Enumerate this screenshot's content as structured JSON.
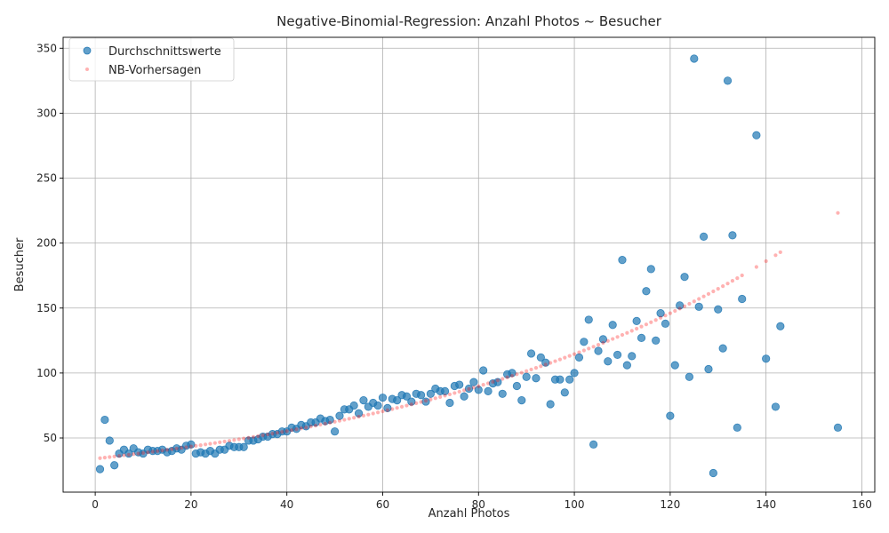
{
  "chart_data": {
    "type": "scatter",
    "title": "Negative-Binomial-Regression: Anzahl Photos ~ Besucher",
    "xlabel": "Anzahl Photos",
    "ylabel": "Besucher",
    "xlim": [
      -6.7,
      162.7
    ],
    "ylim": [
      8.3,
      358.4
    ],
    "xticks": [
      0,
      20,
      40,
      60,
      80,
      100,
      120,
      140,
      160
    ],
    "yticks": [
      50,
      100,
      150,
      200,
      250,
      300,
      350
    ],
    "grid": true,
    "legend_position": "upper left",
    "series": [
      {
        "name": "Durchschnittswerte",
        "color": "#1f77b4",
        "marker": "circle",
        "points": [
          [
            1,
            26
          ],
          [
            2,
            64
          ],
          [
            3,
            48
          ],
          [
            4,
            29
          ],
          [
            5,
            38
          ],
          [
            6,
            41
          ],
          [
            7,
            38
          ],
          [
            8,
            42
          ],
          [
            9,
            39
          ],
          [
            10,
            38
          ],
          [
            11,
            41
          ],
          [
            12,
            40
          ],
          [
            13,
            40
          ],
          [
            14,
            41
          ],
          [
            15,
            39
          ],
          [
            16,
            40
          ],
          [
            17,
            42
          ],
          [
            18,
            41
          ],
          [
            19,
            44
          ],
          [
            20,
            45
          ],
          [
            21,
            38
          ],
          [
            22,
            39
          ],
          [
            23,
            38
          ],
          [
            24,
            40
          ],
          [
            25,
            38
          ],
          [
            26,
            41
          ],
          [
            27,
            41
          ],
          [
            28,
            44
          ],
          [
            29,
            43
          ],
          [
            30,
            43
          ],
          [
            31,
            43
          ],
          [
            32,
            48
          ],
          [
            33,
            48
          ],
          [
            34,
            49
          ],
          [
            35,
            51
          ],
          [
            36,
            51
          ],
          [
            37,
            53
          ],
          [
            38,
            53
          ],
          [
            39,
            55
          ],
          [
            40,
            55
          ],
          [
            41,
            58
          ],
          [
            42,
            57
          ],
          [
            43,
            60
          ],
          [
            44,
            59
          ],
          [
            45,
            62
          ],
          [
            46,
            62
          ],
          [
            47,
            65
          ],
          [
            48,
            63
          ],
          [
            49,
            64
          ],
          [
            50,
            55
          ],
          [
            51,
            67
          ],
          [
            52,
            72
          ],
          [
            53,
            72
          ],
          [
            54,
            75
          ],
          [
            55,
            69
          ],
          [
            56,
            79
          ],
          [
            57,
            74
          ],
          [
            58,
            77
          ],
          [
            59,
            75
          ],
          [
            60,
            81
          ],
          [
            61,
            73
          ],
          [
            62,
            80
          ],
          [
            63,
            79
          ],
          [
            64,
            83
          ],
          [
            65,
            82
          ],
          [
            66,
            78
          ],
          [
            67,
            84
          ],
          [
            68,
            83
          ],
          [
            69,
            78
          ],
          [
            70,
            84
          ],
          [
            71,
            88
          ],
          [
            72,
            86
          ],
          [
            73,
            86
          ],
          [
            74,
            77
          ],
          [
            75,
            90
          ],
          [
            76,
            91
          ],
          [
            77,
            82
          ],
          [
            78,
            88
          ],
          [
            79,
            93
          ],
          [
            80,
            87
          ],
          [
            81,
            102
          ],
          [
            82,
            86
          ],
          [
            83,
            92
          ],
          [
            84,
            93
          ],
          [
            85,
            84
          ],
          [
            86,
            99
          ],
          [
            87,
            100
          ],
          [
            88,
            90
          ],
          [
            89,
            79
          ],
          [
            90,
            97
          ],
          [
            91,
            115
          ],
          [
            92,
            96
          ],
          [
            93,
            112
          ],
          [
            94,
            108
          ],
          [
            95,
            76
          ],
          [
            96,
            95
          ],
          [
            97,
            95
          ],
          [
            98,
            85
          ],
          [
            99,
            95
          ],
          [
            100,
            100
          ],
          [
            101,
            112
          ],
          [
            102,
            124
          ],
          [
            103,
            141
          ],
          [
            104,
            45
          ],
          [
            105,
            117
          ],
          [
            106,
            126
          ],
          [
            107,
            109
          ],
          [
            108,
            137
          ],
          [
            109,
            114
          ],
          [
            110,
            187
          ],
          [
            111,
            106
          ],
          [
            112,
            113
          ],
          [
            113,
            140
          ],
          [
            114,
            127
          ],
          [
            115,
            163
          ],
          [
            116,
            180
          ],
          [
            117,
            125
          ],
          [
            118,
            146
          ],
          [
            119,
            138
          ],
          [
            120,
            67
          ],
          [
            121,
            106
          ],
          [
            122,
            152
          ],
          [
            123,
            174
          ],
          [
            124,
            97
          ],
          [
            125,
            342
          ],
          [
            126,
            151
          ],
          [
            127,
            205
          ],
          [
            128,
            103
          ],
          [
            129,
            23
          ],
          [
            130,
            149
          ],
          [
            131,
            119
          ],
          [
            132,
            325
          ],
          [
            133,
            206
          ],
          [
            134,
            58
          ],
          [
            135,
            157
          ],
          [
            138,
            283
          ],
          [
            140,
            111
          ],
          [
            142,
            74
          ],
          [
            143,
            136
          ],
          [
            155,
            58
          ]
        ]
      },
      {
        "name": "NB-Vorhersagen",
        "color": "#ff0000",
        "marker": "dot",
        "model": {
          "intercept_log": 3.528,
          "slope_log": 0.01213
        },
        "x_values": [
          1,
          2,
          3,
          4,
          5,
          6,
          7,
          8,
          9,
          10,
          11,
          12,
          13,
          14,
          15,
          16,
          17,
          18,
          19,
          20,
          21,
          22,
          23,
          24,
          25,
          26,
          27,
          28,
          29,
          30,
          31,
          32,
          33,
          34,
          35,
          36,
          37,
          38,
          39,
          40,
          41,
          42,
          43,
          44,
          45,
          46,
          47,
          48,
          49,
          50,
          51,
          52,
          53,
          54,
          55,
          56,
          57,
          58,
          59,
          60,
          61,
          62,
          63,
          64,
          65,
          66,
          67,
          68,
          69,
          70,
          71,
          72,
          73,
          74,
          75,
          76,
          77,
          78,
          79,
          80,
          81,
          82,
          83,
          84,
          85,
          86,
          87,
          88,
          89,
          90,
          91,
          92,
          93,
          94,
          95,
          96,
          97,
          98,
          99,
          100,
          101,
          102,
          103,
          104,
          105,
          106,
          107,
          108,
          109,
          110,
          111,
          112,
          113,
          114,
          115,
          116,
          117,
          118,
          119,
          120,
          121,
          122,
          123,
          124,
          125,
          126,
          127,
          128,
          129,
          130,
          131,
          132,
          133,
          134,
          135,
          138,
          140,
          142,
          143,
          155
        ]
      }
    ]
  }
}
